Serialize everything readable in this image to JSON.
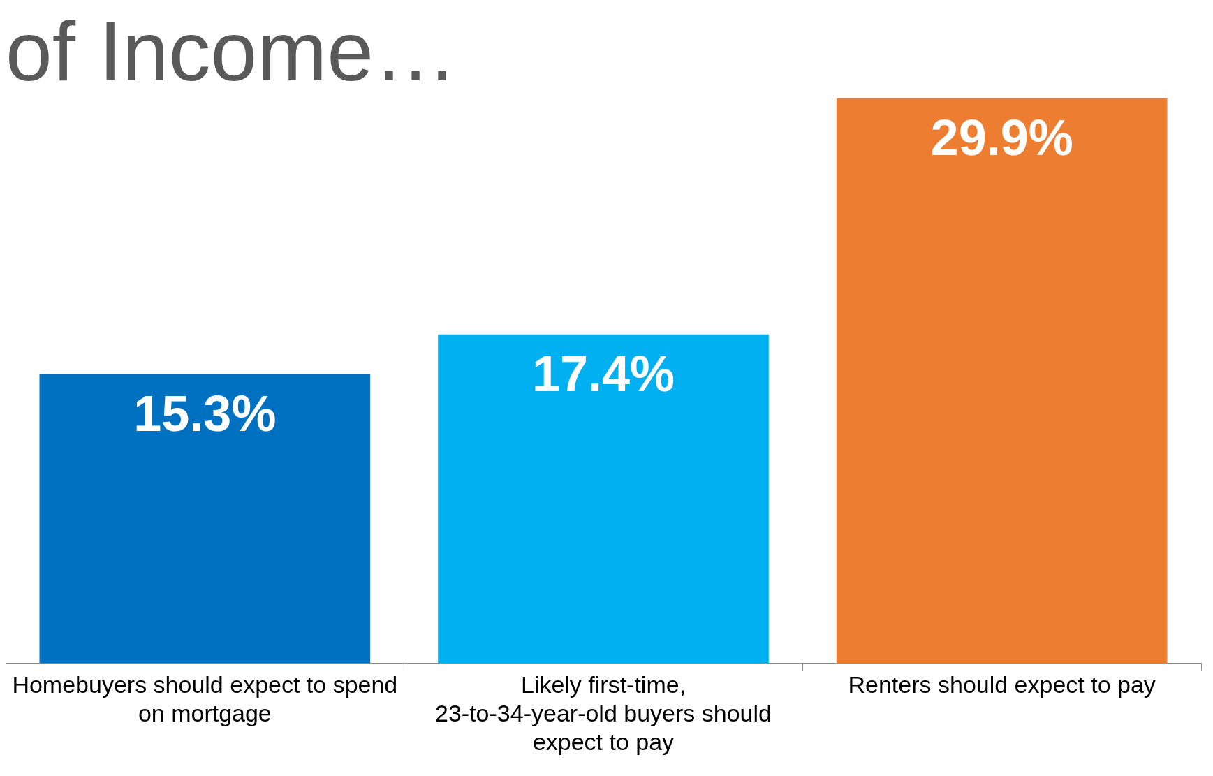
{
  "chart_data": {
    "type": "bar",
    "title": "of Income…",
    "categories": [
      "Homebuyers should expect to spend on mortgage",
      "Likely first-time, 23-to-34-year-old buyers should expect to pay",
      "Renters should expect to pay"
    ],
    "values": [
      15.3,
      17.4,
      29.9
    ],
    "colors": [
      "#0070c0",
      "#00b0f0",
      "#ed7d31"
    ],
    "value_labels": [
      "15.3%",
      "17.4%",
      "29.9%"
    ],
    "grid": false,
    "legend": false
  }
}
